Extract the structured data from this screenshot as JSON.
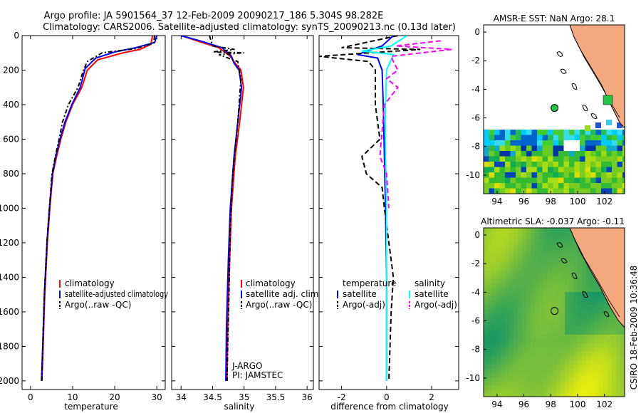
{
  "header": {
    "line1": "Argo profile: JA 5901564_37 12-Feb-2009 20090217_186 5.304S 98.282E",
    "line2": "Climatology: CARS2006. Satellite-adjusted climatology: synTS_20090213.nc (0.13d later)"
  },
  "side_label": "CSIRO 18-Feb-2009 10:36:48",
  "colors": {
    "red": "#ff0000",
    "blue": "#0000ff",
    "black": "#000000",
    "cyan": "#00ffff",
    "magenta": "#ff00ff"
  },
  "chart_data": [
    {
      "id": "temp",
      "type": "line",
      "xlabel": "temperature",
      "xlim": [
        -2,
        32
      ],
      "ylim": [
        2050,
        0
      ],
      "xticks": [
        0,
        10,
        20,
        30
      ],
      "yticks": [
        0,
        200,
        400,
        600,
        800,
        1000,
        1200,
        1400,
        1600,
        1800,
        2000
      ],
      "legend": [
        "climatology",
        "satellite-adjusted climatology",
        "Argo(..raw -QC)"
      ],
      "series": [
        {
          "name": "climatology",
          "color": "red",
          "style": "solid",
          "x": [
            29,
            28.6,
            26,
            22,
            16,
            13.5,
            12.2,
            10,
            8.4,
            7.2,
            6.2,
            5.3,
            4.6,
            4.0,
            3.4,
            3.0,
            2.7
          ],
          "y": [
            0,
            50,
            80,
            100,
            140,
            200,
            300,
            400,
            500,
            600,
            700,
            800,
            1000,
            1200,
            1500,
            1800,
            2000
          ]
        },
        {
          "name": "satellite-adjusted climatology",
          "color": "blue",
          "style": "solid",
          "x": [
            30,
            29.5,
            25,
            20,
            15.5,
            13,
            11.8,
            9.8,
            8.2,
            7.0,
            6.0,
            5.2,
            4.5,
            3.9,
            3.3,
            2.9,
            2.6
          ],
          "y": [
            0,
            40,
            70,
            95,
            130,
            190,
            300,
            400,
            500,
            600,
            700,
            800,
            1000,
            1200,
            1500,
            1800,
            2000
          ]
        },
        {
          "name": "Argo(..raw -QC)",
          "color": "black",
          "style": "dashdot",
          "x": [
            29.5,
            29.2,
            25,
            17,
            13.5,
            12.6,
            11.3,
            9.0,
            7.6,
            6.8,
            5.9,
            5.1,
            4.5,
            3.9,
            3.3,
            2.9,
            2.7
          ],
          "y": [
            0,
            45,
            75,
            100,
            150,
            200,
            300,
            400,
            500,
            600,
            700,
            800,
            1000,
            1200,
            1500,
            1800,
            2000
          ]
        }
      ]
    },
    {
      "id": "sal",
      "type": "line",
      "xlabel": "salinity",
      "xlim": [
        33.85,
        36.1
      ],
      "ylim": [
        2050,
        0
      ],
      "xticks": [
        34,
        34.5,
        35,
        35.5,
        36
      ],
      "legend": [
        "climatology",
        "satellite adj. clim.",
        "Argo(..raw -QC)"
      ],
      "annotations": [
        "J-ARGO",
        "PI: JAMSTEC"
      ],
      "series": [
        {
          "name": "climatology",
          "color": "red",
          "style": "solid",
          "x": [
            34.0,
            34.25,
            34.6,
            34.78,
            34.86,
            34.95,
            34.99,
            34.93,
            34.86,
            34.8,
            34.77,
            34.74,
            34.73
          ],
          "y": [
            0,
            30,
            70,
            120,
            160,
            200,
            300,
            500,
            700,
            1000,
            1300,
            1700,
            2000
          ]
        },
        {
          "name": "satellite adj. clim.",
          "color": "blue",
          "style": "solid",
          "x": [
            34.0,
            34.3,
            34.65,
            34.8,
            34.84,
            34.92,
            34.96,
            34.9,
            34.84,
            34.78,
            34.75,
            34.72,
            34.71
          ],
          "y": [
            0,
            30,
            70,
            120,
            160,
            200,
            300,
            500,
            700,
            1000,
            1300,
            1700,
            2000
          ]
        },
        {
          "name": "Argo(..raw -QC)",
          "color": "black",
          "style": "dashdot",
          "x": [
            34.45,
            34.5,
            34.85,
            34.5,
            35.0,
            34.6,
            34.9,
            34.95,
            34.9,
            34.82,
            34.78,
            34.76,
            34.74,
            34.73
          ],
          "y": [
            0,
            60,
            80,
            95,
            100,
            110,
            150,
            250,
            500,
            800,
            1100,
            1500,
            1800,
            2000
          ]
        }
      ]
    },
    {
      "id": "diff",
      "type": "line",
      "xlabel": "difference from climatology",
      "xlim": [
        -3,
        3.2
      ],
      "ylim": [
        2050,
        0
      ],
      "xticks": [
        -2,
        0,
        2
      ],
      "legend_temperature": [
        "temperature",
        "satellite",
        "Argo(-adj)"
      ],
      "legend_salinity": [
        "salinity",
        "satellite",
        "Argo(-adj)"
      ],
      "series": [
        {
          "name": "temperature satellite",
          "color": "blue",
          "style": "solid",
          "x": [
            0.3,
            -0.2,
            -1.3,
            -0.4,
            -0.2,
            -0.15,
            -0.1,
            -0.05,
            0,
            0,
            0
          ],
          "y": [
            0,
            60,
            110,
            130,
            200,
            400,
            700,
            1000,
            1400,
            1700,
            2000
          ]
        },
        {
          "name": "temperature Argo(-adj)",
          "color": "black",
          "style": "dashed",
          "x": [
            0.5,
            -2.0,
            1.5,
            -3.0,
            -0.8,
            -0.5,
            -0.5,
            -0.3,
            -1.1,
            -0.9,
            -0.2,
            -0.1,
            0.1,
            0.2,
            0.3,
            0.2,
            0.15,
            0.1
          ],
          "y": [
            0,
            70,
            80,
            120,
            150,
            200,
            400,
            600,
            700,
            800,
            880,
            1000,
            1200,
            1300,
            1400,
            1600,
            1800,
            2000
          ]
        },
        {
          "name": "salinity satellite",
          "color": "cyan",
          "style": "solid",
          "x": [
            0.9,
            0.2,
            -1.1,
            0.3,
            0,
            -0.05,
            -0.05,
            0,
            0,
            0
          ],
          "y": [
            0,
            60,
            90,
            110,
            200,
            400,
            700,
            1000,
            1500,
            2000
          ]
        },
        {
          "name": "salinity Argo(-adj)",
          "color": "magenta",
          "style": "dashed",
          "x": [
            2.4,
            0.4,
            2.9,
            0.2,
            0.3,
            0.5,
            0.0,
            0.5,
            -0.1,
            -0.3,
            0.0,
            0.1
          ],
          "y": [
            30,
            60,
            80,
            120,
            150,
            200,
            250,
            300,
            400,
            700,
            800,
            1000
          ]
        }
      ]
    },
    {
      "id": "sst_map",
      "type": "heatmap",
      "title": "AMSR-E SST: NaN Argo: 28.1",
      "xlim": [
        93,
        103.5
      ],
      "ylim": [
        -11.3,
        0.5
      ],
      "xticks": [
        94,
        96,
        98,
        100,
        102
      ],
      "yticks": [
        0,
        -2,
        -4,
        -6,
        -8,
        -10
      ],
      "argo_position": [
        98.282,
        -5.304
      ]
    },
    {
      "id": "sla_map",
      "type": "heatmap",
      "title": "Altimetric SLA: -0.037 Argo: -0.11",
      "xlim": [
        93,
        103.5
      ],
      "ylim": [
        -11.3,
        0.5
      ],
      "xticks": [
        94,
        96,
        98,
        100,
        102
      ],
      "yticks": [
        0,
        -2,
        -4,
        -6,
        -8,
        -10
      ],
      "argo_position": [
        98.282,
        -5.304
      ]
    }
  ]
}
